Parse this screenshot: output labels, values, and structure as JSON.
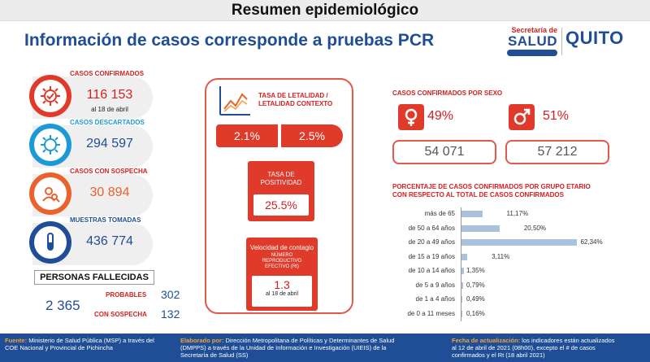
{
  "header": {
    "title": "Resumen epidemiológico"
  },
  "headline": "Información de casos corresponde a pruebas PCR",
  "logos": {
    "salud_top": "Secretaría de",
    "salud_main": "SALUD",
    "quito_main": "QUITO"
  },
  "stats": {
    "confirmados": {
      "label": "CASOS CONFIRMADOS",
      "value": "116 153",
      "sub": "al 18 de abril"
    },
    "descartados": {
      "label": "CASOS DESCARTADOS",
      "value": "294 597"
    },
    "sospecha": {
      "label": "CASOS CON SOSPECHA",
      "value": "30 894"
    },
    "muestras": {
      "label": "MUESTRAS TOMADAS",
      "value": "436 774"
    }
  },
  "fallecidas": {
    "title": "PERSONAS FALLECIDAS",
    "total": "2 365",
    "probables_label": "PROBABLES",
    "probables_value": "302",
    "sospecha_label": "CON SOSPECHA",
    "sospecha_value": "132"
  },
  "letalidad": {
    "title_line1": "TASA DE LETALIDAD /",
    "title_line2": "LETALIDAD CONTEXTO",
    "value1": "2.1%",
    "value2": "2.5%"
  },
  "positividad": {
    "title_line1": "TASA DE",
    "title_line2": "POSITIVIDAD",
    "value": "25.5%"
  },
  "contagio": {
    "title": "Velocidad de contagio",
    "sub_line1": "NÚMERO",
    "sub_line2": "REPRODUCTIVO",
    "sub_line3": "EFECTIVO (Rt)",
    "value": "1.3",
    "date": "al 18 de abril"
  },
  "sexo": {
    "title": "CASOS CONFIRMADOS POR SEXO",
    "female_pct": "49%",
    "female_value": "54 071",
    "male_pct": "51%",
    "male_value": "57 212"
  },
  "age_chart": {
    "title_line1": "PORCENTAJE DE CASOS CONFIRMADOS POR GRUPO ETARIO",
    "title_line2": "CON RESPECTO AL TOTAL DE CASOS CONFIRMADOS"
  },
  "chart_data": {
    "type": "bar",
    "orientation": "horizontal",
    "categories": [
      "más de 65",
      "de 50 a 64 años",
      "de 20 a 49 años",
      "de 15 a 19 años",
      "de 10 a 14 años",
      "de 5 a 9 años",
      "de 1 a 4 años",
      "de 0 a 11 meses"
    ],
    "values": [
      11.17,
      20.5,
      62.34,
      3.11,
      1.35,
      0.79,
      0.49,
      0.16
    ],
    "value_labels": [
      "11,17%",
      "20,50%",
      "62,34%",
      "3,11%",
      "1,35%",
      "0,79%",
      "0,49%",
      "0,16%"
    ],
    "title": "PORCENTAJE DE CASOS CONFIRMADOS POR GRUPO ETARIO CON RESPECTO AL TOTAL DE CASOS CONFIRMADOS",
    "xlim": [
      0,
      70
    ],
    "color": "#a9c2e0",
    "grid": false
  },
  "footer": {
    "fuente_label": "Fuente:",
    "fuente_text": "Ministerio de Salud Pública (MSP) a través del",
    "fuente_text2": "COE Nacional y Provincial de Pichincha",
    "elaborado_label": "Elaborado por:",
    "elaborado_text": "Dirección Metropolitana de Políticas y Determinantes de Salud",
    "elaborado_text2": "(DMPPS) a través de la Unidad de Información e Investigación (UIEIS) de la",
    "elaborado_text3": "Secretaría de Salud (SS)",
    "actualizacion_label": "Fecha de actualización:",
    "actualizacion_text": "los indicadores están actualizados",
    "actualizacion_text2": "al 12 de abril de 2021 (08h00), excepto el # de casos",
    "actualizacion_text3": "confirmados y el Rt (18 abril 2021)"
  },
  "colors": {
    "red": "#e03a2a",
    "blue": "#1f4e96",
    "cyan": "#1b9ad6",
    "orange": "#e8632d",
    "bar": "#a9c2e0"
  }
}
